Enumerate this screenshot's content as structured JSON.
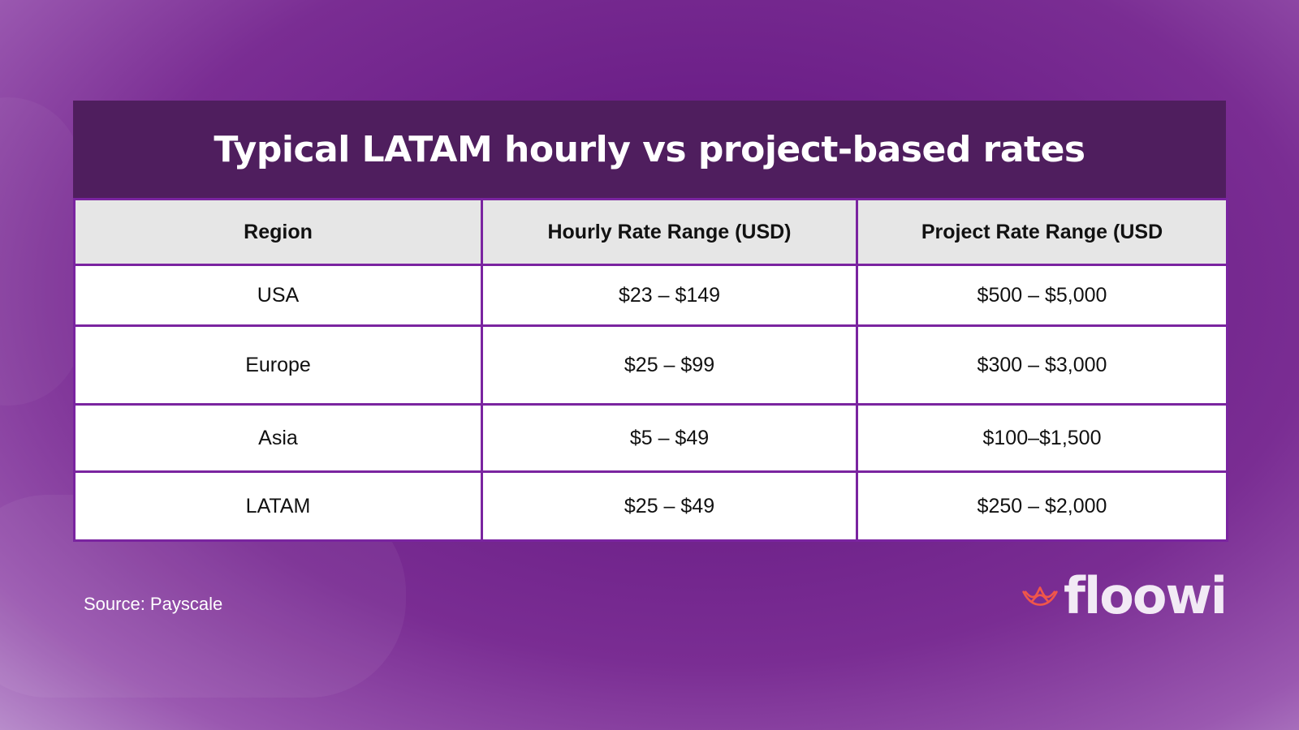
{
  "chart_data": {
    "type": "table",
    "title": "Typical LATAM hourly vs project-based rates",
    "columns": [
      "Region",
      "Hourly Rate Range (USD)",
      "Project Rate Range (USD"
    ],
    "rows": [
      [
        "USA",
        "$23 – $149",
        "$500 – $5,000"
      ],
      [
        "Europe",
        "$25 – $99",
        "$300 – $3,000"
      ],
      [
        "Asia",
        "$5 – $49",
        "$100–$1,500"
      ],
      [
        "LATAM",
        "$25 – $49",
        "$250 – $2,000"
      ]
    ]
  },
  "footer": {
    "source": "Source: Payscale",
    "logo_text": "floowi"
  },
  "colors": {
    "title_bg": "#4f1e5e",
    "border": "#7a24a0",
    "header_bg": "#e6e6e6",
    "logo_icon": "#f0564a"
  },
  "icons": {
    "logo": "crown-waves-icon"
  }
}
